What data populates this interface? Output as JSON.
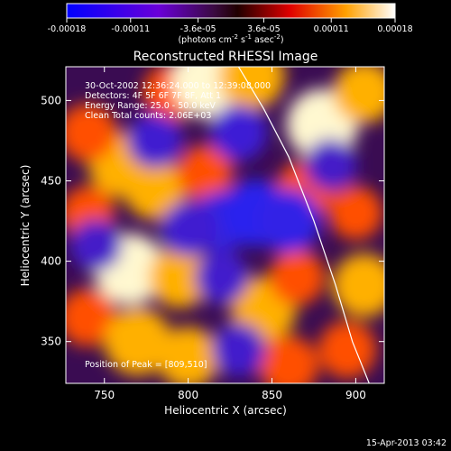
{
  "chart_data": {
    "type": "heatmap",
    "title": "Reconstructed RHESSI Image",
    "xlabel": "Heliocentric X (arcsec)",
    "ylabel": "Heliocentric Y (arcsec)",
    "xlim": [
      727,
      917
    ],
    "ylim": [
      324,
      521
    ],
    "x_ticks": [
      750,
      800,
      850,
      900
    ],
    "y_ticks": [
      350,
      400,
      450,
      500
    ],
    "colorbar": {
      "ticks": [
        "-0.00018",
        "-0.00011",
        "-3.6e-05",
        "3.6e-05",
        "0.00011",
        "0.00018"
      ],
      "tick_values": [
        -0.00018,
        -0.00011,
        -3.6e-05,
        3.6e-05,
        0.00011,
        0.00018
      ],
      "range": [
        -0.00018,
        0.00018
      ],
      "units_prefix": "(photons cm",
      "units_sup1": "-2",
      "units_mid": " s",
      "units_sup2": "-1",
      "units_suffix": " asec",
      "units_sup3": "-2",
      "units_close": ")",
      "colormap": "blue-purple-red-yellow-white (RHESSI)"
    },
    "annotations": {
      "time": "30-Oct-2002 12:36:24.000 to 12:39:08.000",
      "detectors": "Detectors: 4F 5F 6F 7F 8F, Att 1",
      "energy": "Energy Range: 25.0 - 50.0 keV",
      "clean": "Clean    Total counts: 2.06E+03",
      "peak": "Position of Peak = [809,510]"
    },
    "peak": [
      809,
      510
    ],
    "limb_curve": [
      [
        830,
        521
      ],
      [
        845,
        495
      ],
      [
        860,
        465
      ],
      [
        875,
        425
      ],
      [
        888,
        385
      ],
      [
        898,
        350
      ],
      [
        908,
        324
      ]
    ],
    "intensity_blobs": [
      {
        "x": 760,
        "y": 460,
        "v": 0.8
      },
      {
        "x": 740,
        "y": 480,
        "v": 0.6
      },
      {
        "x": 790,
        "y": 505,
        "v": 0.6
      },
      {
        "x": 812,
        "y": 512,
        "v": 1.0
      },
      {
        "x": 838,
        "y": 515,
        "v": 0.8
      },
      {
        "x": 880,
        "y": 485,
        "v": 0.95
      },
      {
        "x": 905,
        "y": 505,
        "v": 0.7
      },
      {
        "x": 780,
        "y": 445,
        "v": 0.7
      },
      {
        "x": 810,
        "y": 455,
        "v": 0.55
      },
      {
        "x": 870,
        "y": 445,
        "v": 0.6
      },
      {
        "x": 900,
        "y": 430,
        "v": 0.5
      },
      {
        "x": 740,
        "y": 430,
        "v": 0.5
      },
      {
        "x": 765,
        "y": 395,
        "v": 0.95
      },
      {
        "x": 795,
        "y": 390,
        "v": 0.7
      },
      {
        "x": 845,
        "y": 370,
        "v": 0.8
      },
      {
        "x": 865,
        "y": 390,
        "v": 0.55
      },
      {
        "x": 905,
        "y": 385,
        "v": 0.75
      },
      {
        "x": 740,
        "y": 365,
        "v": 0.6
      },
      {
        "x": 770,
        "y": 350,
        "v": 0.85
      },
      {
        "x": 800,
        "y": 340,
        "v": 0.7
      },
      {
        "x": 860,
        "y": 335,
        "v": 0.65
      },
      {
        "x": 895,
        "y": 345,
        "v": 0.6
      },
      {
        "x": 820,
        "y": 425,
        "v": -0.6
      },
      {
        "x": 840,
        "y": 430,
        "v": -0.8
      },
      {
        "x": 860,
        "y": 425,
        "v": -0.7
      },
      {
        "x": 800,
        "y": 420,
        "v": -0.45
      },
      {
        "x": 780,
        "y": 475,
        "v": -0.45
      },
      {
        "x": 830,
        "y": 480,
        "v": -0.5
      },
      {
        "x": 820,
        "y": 390,
        "v": -0.4
      },
      {
        "x": 745,
        "y": 410,
        "v": -0.35
      },
      {
        "x": 830,
        "y": 345,
        "v": -0.4
      },
      {
        "x": 885,
        "y": 460,
        "v": -0.35
      }
    ]
  },
  "footer": {
    "timestamp": "15-Apr-2013 03:42"
  }
}
